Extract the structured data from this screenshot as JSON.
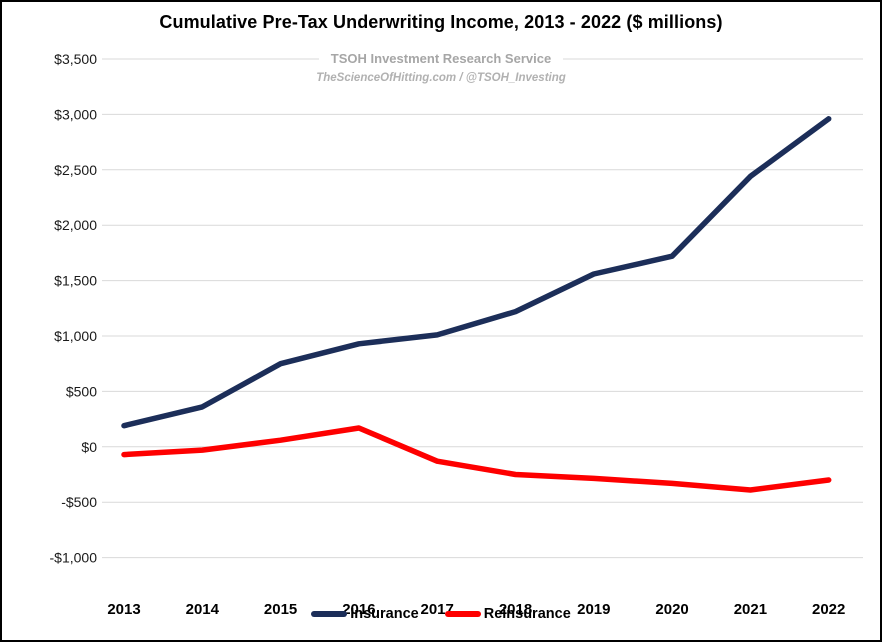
{
  "header": {
    "title": "Cumulative Pre-Tax Underwriting Income, 2013 - 2022 ($ millions)",
    "subtitle": "TSOH Investment Research Service",
    "tagline": "TheScienceOfHitting.com / @TSOH_Investing"
  },
  "colors": {
    "insurance_line": "#1c2e59",
    "reinsurance_line": "#fe0000",
    "gridline": "#d9d9d9",
    "axis_text": "#1a1a1a",
    "subtitle_text": "#a6a6a6"
  },
  "chart_data": {
    "type": "line",
    "title": "Cumulative Pre-Tax Underwriting Income, 2013 - 2022 ($ millions)",
    "categories": [
      "2013",
      "2014",
      "2015",
      "2016",
      "2017",
      "2018",
      "2019",
      "2020",
      "2021",
      "2022"
    ],
    "series": [
      {
        "name": "Insurance",
        "color": "#1c2e59",
        "values": [
          190,
          360,
          750,
          930,
          1010,
          1220,
          1560,
          1720,
          2440,
          2960
        ]
      },
      {
        "name": "Reinsurance",
        "color": "#fe0000",
        "values": [
          -70,
          -30,
          60,
          170,
          -130,
          -250,
          -285,
          -330,
          -390,
          -300
        ]
      }
    ],
    "xlabel": "",
    "ylabel": "",
    "y_axis": {
      "min": -1000,
      "max": 3500,
      "step": 500
    },
    "y_tick_labels": [
      "$3,500",
      "$3,000",
      "$2,500",
      "$2,000",
      "$1,500",
      "$1,000",
      "$500",
      "$0",
      "-$500",
      "-$1,000"
    ],
    "grid": "horizontal",
    "legend_position": "bottom"
  }
}
